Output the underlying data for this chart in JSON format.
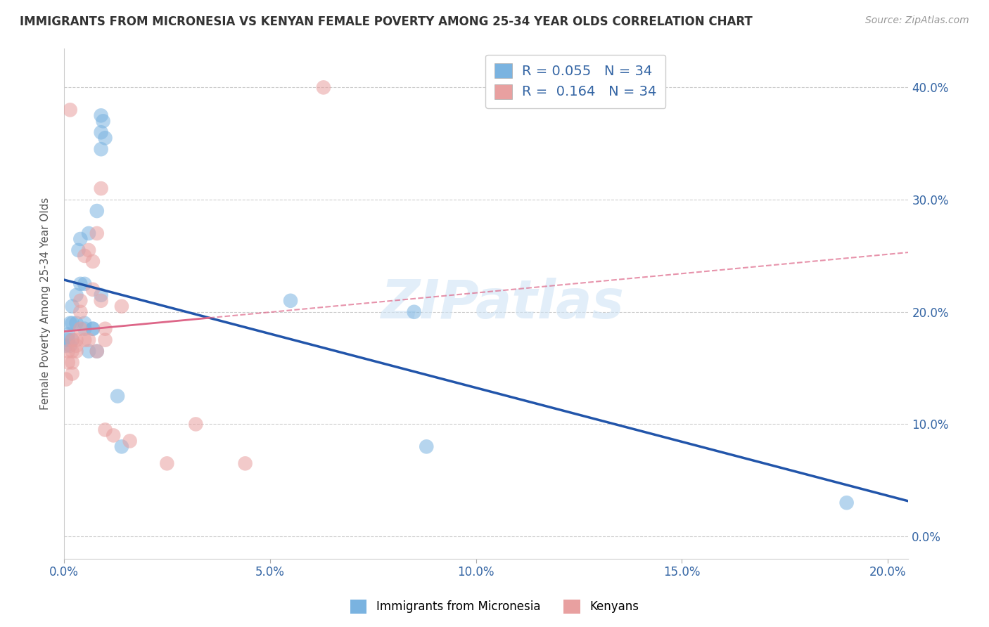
{
  "title": "IMMIGRANTS FROM MICRONESIA VS KENYAN FEMALE POVERTY AMONG 25-34 YEAR OLDS CORRELATION CHART",
  "source": "Source: ZipAtlas.com",
  "xlim": [
    0.0,
    0.205
  ],
  "ylim": [
    -0.02,
    0.435
  ],
  "ylabel": "Female Poverty Among 25-34 Year Olds",
  "legend_label1": "Immigrants from Micronesia",
  "legend_label2": "Kenyans",
  "R1": "0.055",
  "N1": "34",
  "R2": "0.164",
  "N2": "34",
  "blue_color": "#7ab3e0",
  "pink_color": "#e8a0a0",
  "line_blue": "#2255aa",
  "line_pink": "#dd6688",
  "watermark_text": "ZIPatlas",
  "blue_x": [
    0.0005,
    0.001,
    0.001,
    0.0015,
    0.0015,
    0.002,
    0.002,
    0.002,
    0.003,
    0.003,
    0.0035,
    0.004,
    0.004,
    0.005,
    0.005,
    0.005,
    0.006,
    0.006,
    0.007,
    0.007,
    0.008,
    0.008,
    0.009,
    0.009,
    0.009,
    0.009,
    0.0095,
    0.01,
    0.013,
    0.014,
    0.055,
    0.085,
    0.088,
    0.19
  ],
  "blue_y": [
    0.17,
    0.175,
    0.18,
    0.17,
    0.19,
    0.175,
    0.19,
    0.205,
    0.19,
    0.215,
    0.255,
    0.225,
    0.265,
    0.225,
    0.19,
    0.185,
    0.165,
    0.27,
    0.185,
    0.185,
    0.165,
    0.29,
    0.215,
    0.345,
    0.36,
    0.375,
    0.37,
    0.355,
    0.125,
    0.08,
    0.21,
    0.2,
    0.08,
    0.03
  ],
  "pink_x": [
    0.0005,
    0.001,
    0.001,
    0.0015,
    0.002,
    0.002,
    0.002,
    0.002,
    0.003,
    0.003,
    0.003,
    0.004,
    0.004,
    0.004,
    0.005,
    0.005,
    0.006,
    0.006,
    0.007,
    0.007,
    0.008,
    0.008,
    0.009,
    0.009,
    0.01,
    0.01,
    0.01,
    0.012,
    0.014,
    0.016,
    0.025,
    0.032,
    0.044,
    0.063
  ],
  "pink_y": [
    0.14,
    0.155,
    0.165,
    0.38,
    0.145,
    0.155,
    0.165,
    0.175,
    0.165,
    0.17,
    0.175,
    0.185,
    0.2,
    0.21,
    0.25,
    0.175,
    0.175,
    0.255,
    0.22,
    0.245,
    0.165,
    0.27,
    0.31,
    0.21,
    0.185,
    0.175,
    0.095,
    0.09,
    0.205,
    0.085,
    0.065,
    0.1,
    0.065,
    0.4
  ]
}
